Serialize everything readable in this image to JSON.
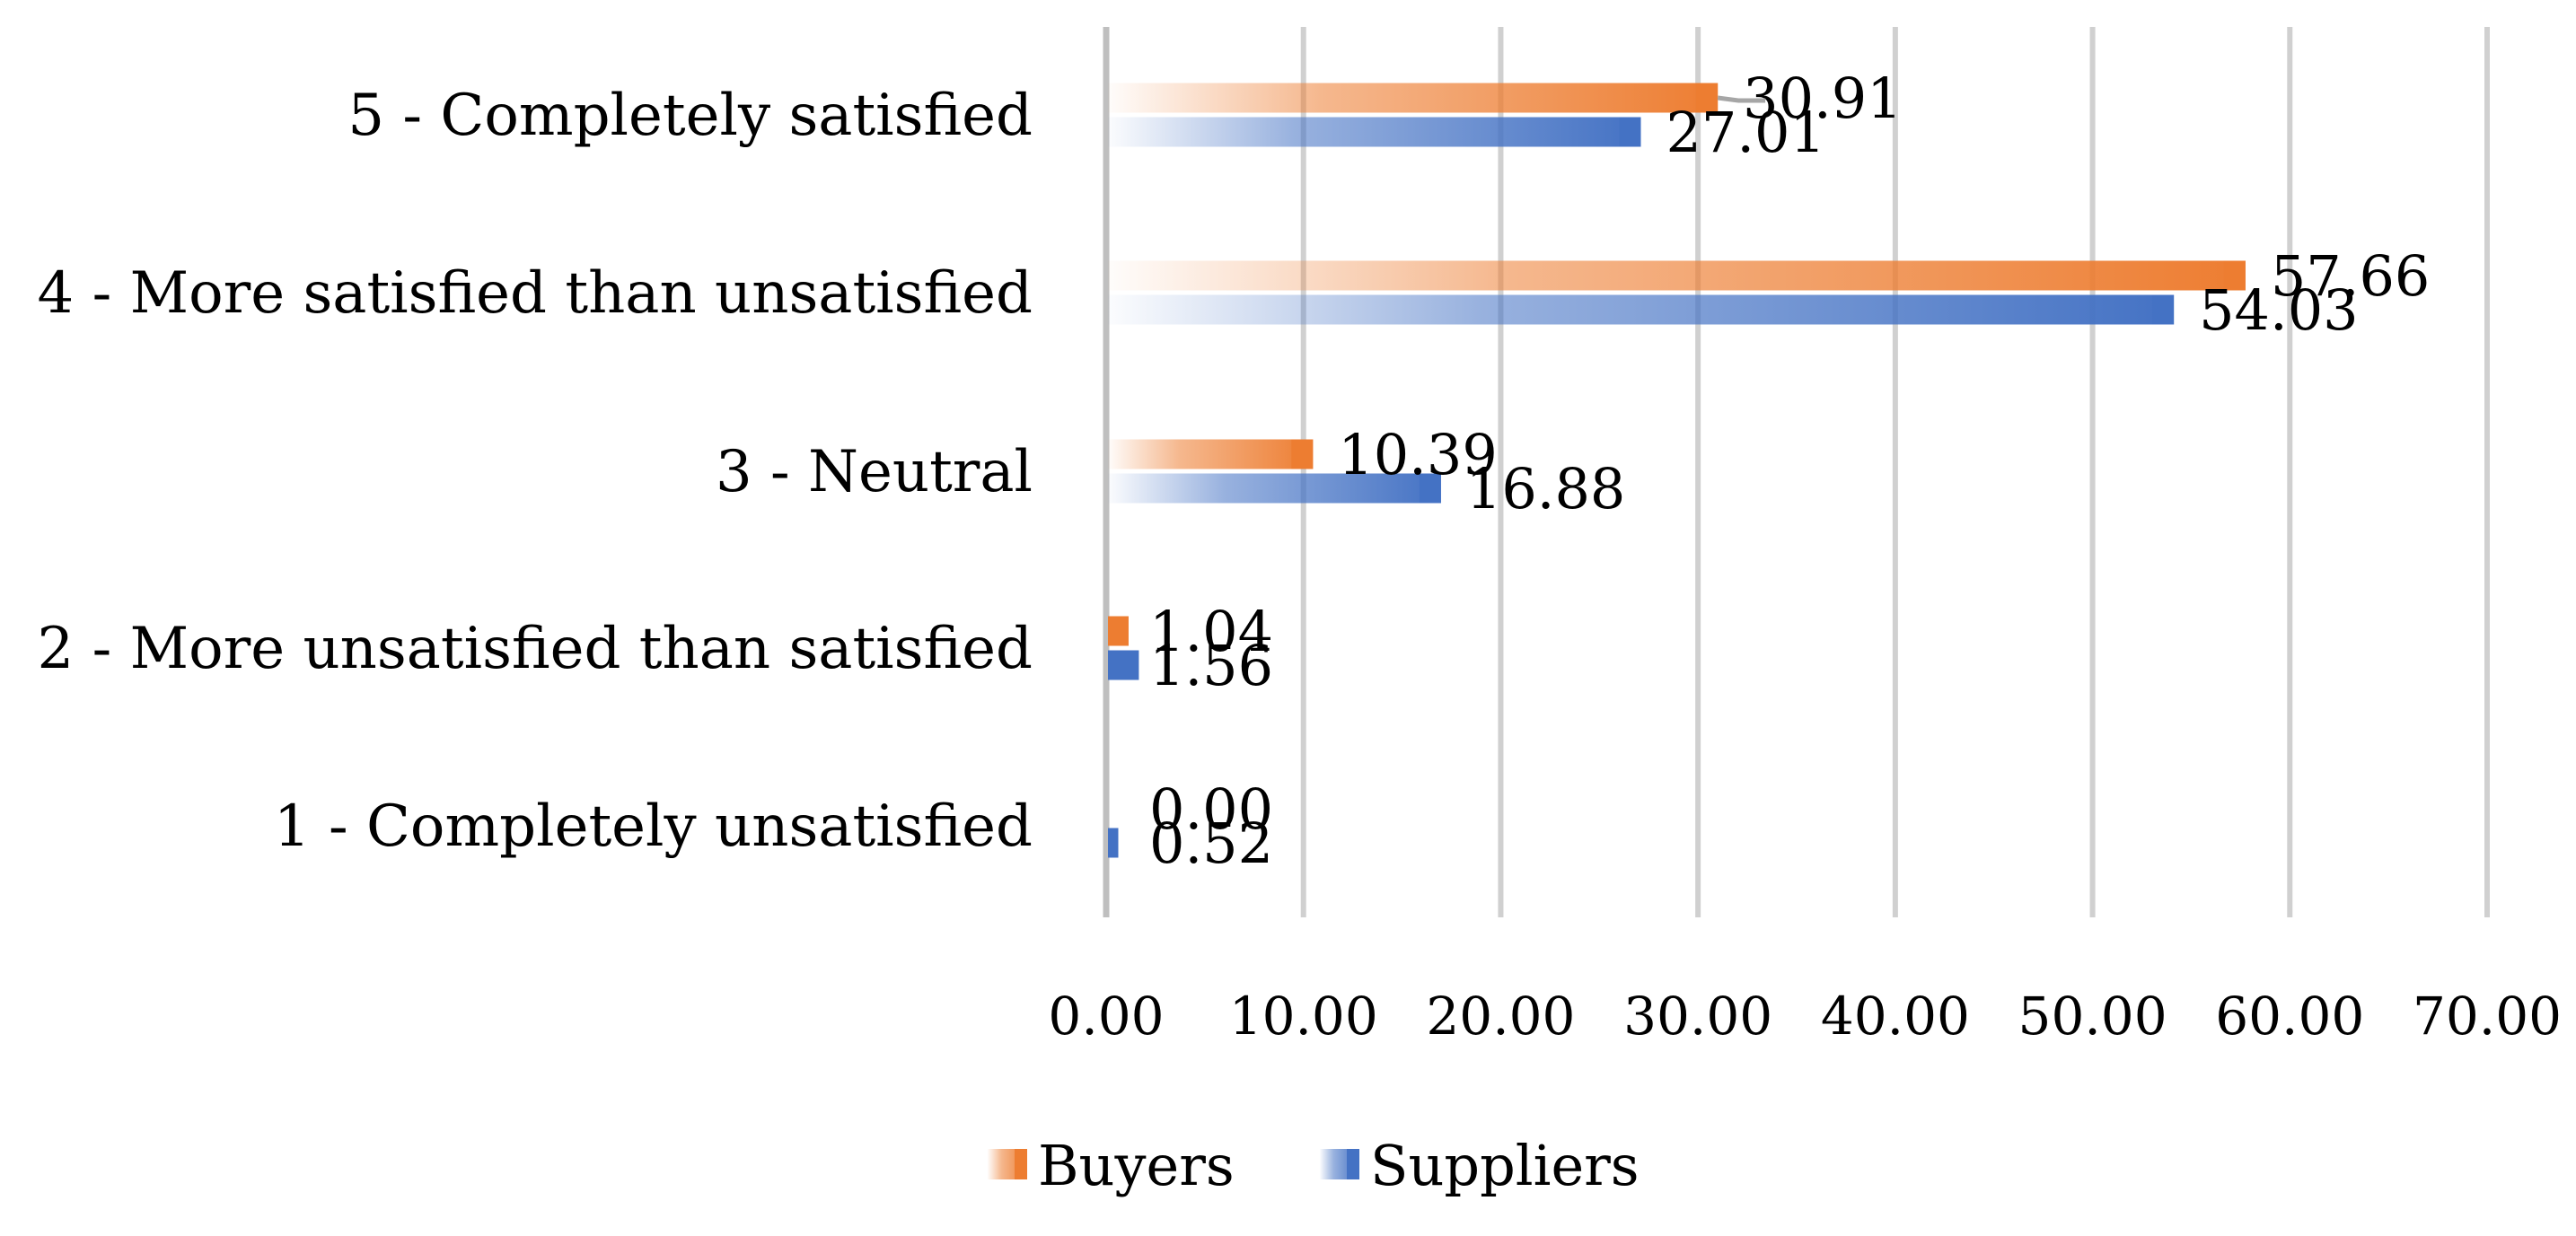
{
  "chart_data": {
    "type": "bar",
    "orientation": "horizontal",
    "categories": [
      "5 - Completely satisfied",
      "4 - More satisfied than unsatisfied",
      "3 - Neutral",
      "2 - More unsatisfied than satisfied",
      "1 - Completely unsatisfied"
    ],
    "series": [
      {
        "name": "Buyers",
        "color": "#ED7D31",
        "values": [
          30.91,
          57.66,
          10.39,
          1.04,
          0.0
        ],
        "labels": [
          "30.91",
          "57.66",
          "10.39",
          "1.04",
          "0.00"
        ]
      },
      {
        "name": "Suppliers",
        "color": "#4472C4",
        "values": [
          27.01,
          54.03,
          16.88,
          1.56,
          0.52
        ],
        "labels": [
          "27.01",
          "54.03",
          "16.88",
          "1.56",
          "0.52"
        ]
      }
    ],
    "xlim": [
      0,
      70
    ],
    "xticks": [
      0,
      10,
      20,
      30,
      40,
      50,
      60,
      70
    ],
    "xtick_labels": [
      "0.00",
      "10.00",
      "20.00",
      "30.00",
      "40.00",
      "50.00",
      "60.00",
      "70.00"
    ],
    "grid": true,
    "legend_position": "bottom-center",
    "title": "",
    "xlabel": "",
    "ylabel": ""
  }
}
